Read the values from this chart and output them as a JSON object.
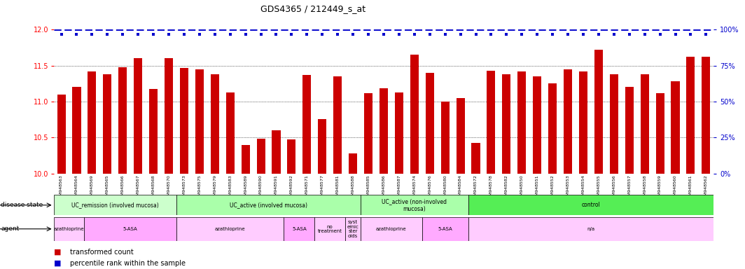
{
  "title": "GDS4365 / 212449_s_at",
  "samples": [
    "GSM948563",
    "GSM948564",
    "GSM948569",
    "GSM948565",
    "GSM948566",
    "GSM948567",
    "GSM948568",
    "GSM948570",
    "GSM948573",
    "GSM948575",
    "GSM948579",
    "GSM948583",
    "GSM948589",
    "GSM948590",
    "GSM948591",
    "GSM948592",
    "GSM948571",
    "GSM948577",
    "GSM948581",
    "GSM948588",
    "GSM948585",
    "GSM948586",
    "GSM948587",
    "GSM948574",
    "GSM948576",
    "GSM948580",
    "GSM948584",
    "GSM948572",
    "GSM948578",
    "GSM948582",
    "GSM948550",
    "GSM948551",
    "GSM948552",
    "GSM948553",
    "GSM948554",
    "GSM948555",
    "GSM948556",
    "GSM948557",
    "GSM948558",
    "GSM948559",
    "GSM948560",
    "GSM948561",
    "GSM948562"
  ],
  "values": [
    11.1,
    11.2,
    11.42,
    11.38,
    11.48,
    11.6,
    11.17,
    11.6,
    11.47,
    11.45,
    11.38,
    11.13,
    10.4,
    10.48,
    10.6,
    10.47,
    11.37,
    10.76,
    11.35,
    10.28,
    11.12,
    11.18,
    11.13,
    11.65,
    11.4,
    11.0,
    11.05,
    10.43,
    11.43,
    11.38,
    11.42,
    11.35,
    11.25,
    11.45,
    11.42,
    11.72,
    11.38,
    11.2,
    11.38,
    11.12,
    11.28,
    11.62,
    11.62
  ],
  "ylim_low": 10,
  "ylim_high": 12,
  "yticks_left": [
    10,
    10.5,
    11,
    11.5,
    12
  ],
  "yticks_right": [
    0,
    25,
    50,
    75,
    100
  ],
  "bar_color": "#cc0000",
  "percentile_color": "#0000cc",
  "disease_state_groups": [
    {
      "label": "UC_remission (involved mucosa)",
      "start": 0,
      "end": 8,
      "color": "#ccffcc"
    },
    {
      "label": "UC_active (involved mucosa)",
      "start": 8,
      "end": 20,
      "color": "#aaffaa"
    },
    {
      "label": "UC_active (non-involved\nmucosa)",
      "start": 20,
      "end": 27,
      "color": "#aaffaa"
    },
    {
      "label": "control",
      "start": 27,
      "end": 43,
      "color": "#55ee55"
    }
  ],
  "agent_groups": [
    {
      "label": "azathioprine",
      "start": 0,
      "end": 2,
      "color": "#ffccff"
    },
    {
      "label": "5-ASA",
      "start": 2,
      "end": 8,
      "color": "#ffaaff"
    },
    {
      "label": "azathioprine",
      "start": 8,
      "end": 15,
      "color": "#ffccff"
    },
    {
      "label": "5-ASA",
      "start": 15,
      "end": 17,
      "color": "#ffaaff"
    },
    {
      "label": "no\ntreatment",
      "start": 17,
      "end": 19,
      "color": "#ffccff"
    },
    {
      "label": "syst\nemic\nster\noids",
      "start": 19,
      "end": 20,
      "color": "#ffccff"
    },
    {
      "label": "azathioprine",
      "start": 20,
      "end": 24,
      "color": "#ffccff"
    },
    {
      "label": "5-ASA",
      "start": 24,
      "end": 27,
      "color": "#ffaaff"
    },
    {
      "label": "n/a",
      "start": 27,
      "end": 43,
      "color": "#ffccff"
    }
  ]
}
